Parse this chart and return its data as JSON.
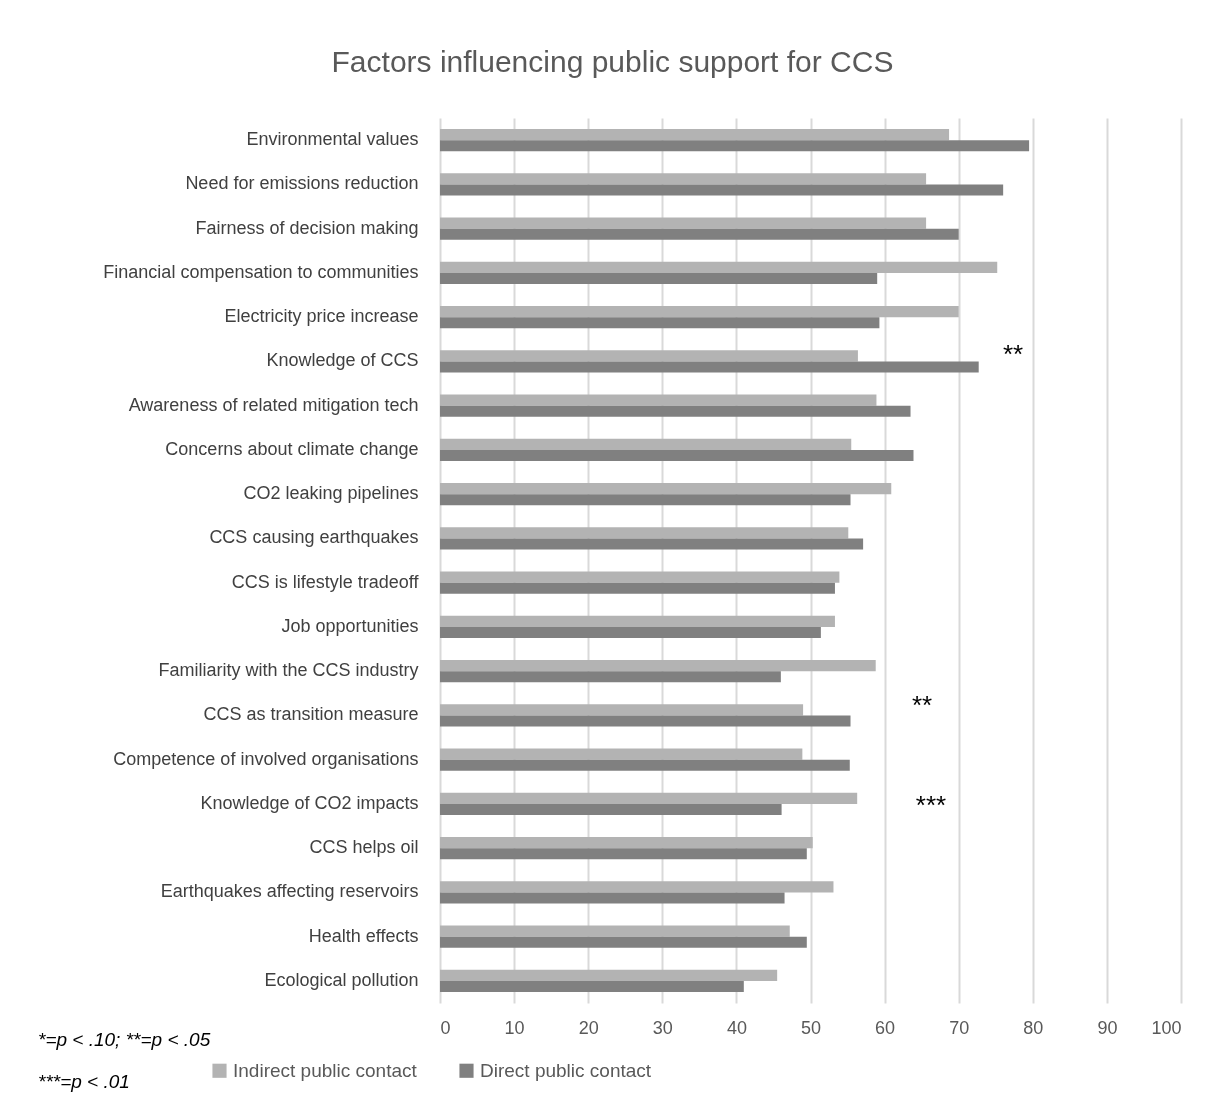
{
  "chart_data": {
    "type": "bar",
    "orientation": "horizontal",
    "title": "Factors influencing public support for CCS",
    "categories": [
      "Environmental values",
      "Need for emissions reduction",
      "Fairness of decision making",
      "Financial compensation to communities",
      "Electricity price increase",
      "Knowledge of CCS",
      "Awareness of related mitigation tech",
      "Concerns about climate change",
      "CO2 leaking pipelines",
      "CCS causing earthquakes",
      "CCS is lifestyle tradeoff",
      "Job opportunities",
      "Familiarity with the CCS industry",
      "CCS as transition measure",
      "Competence of involved organisations",
      "Knowledge of CO2 impacts",
      "CCS helps oil",
      "Earthquakes affecting reservoirs",
      "Health effects",
      "Ecological pollution"
    ],
    "series": [
      {
        "name": "Indirect public contact",
        "color": "#b3b3b3",
        "values": [
          68.7,
          65.6,
          65.6,
          75.2,
          70.0,
          56.4,
          58.9,
          55.5,
          60.9,
          55.1,
          53.9,
          53.3,
          58.8,
          49.0,
          48.9,
          56.3,
          50.3,
          53.1,
          47.2,
          45.5
        ]
      },
      {
        "name": "Direct public contact",
        "color": "#808080",
        "values": [
          79.5,
          76.0,
          70.0,
          59.0,
          59.3,
          72.7,
          63.5,
          63.9,
          55.4,
          57.1,
          53.3,
          51.4,
          46.0,
          55.4,
          55.3,
          46.1,
          49.5,
          46.5,
          49.5,
          41.0
        ]
      }
    ],
    "xlim": [
      0,
      100
    ],
    "xticks": [
      0,
      10,
      20,
      30,
      40,
      50,
      60,
      70,
      80,
      90,
      100
    ],
    "grid": "x",
    "legend": "bottom",
    "annotations": [
      "**",
      "**",
      "***",
      "*=p < .10; **=p < .05",
      "***=p < .01"
    ]
  }
}
